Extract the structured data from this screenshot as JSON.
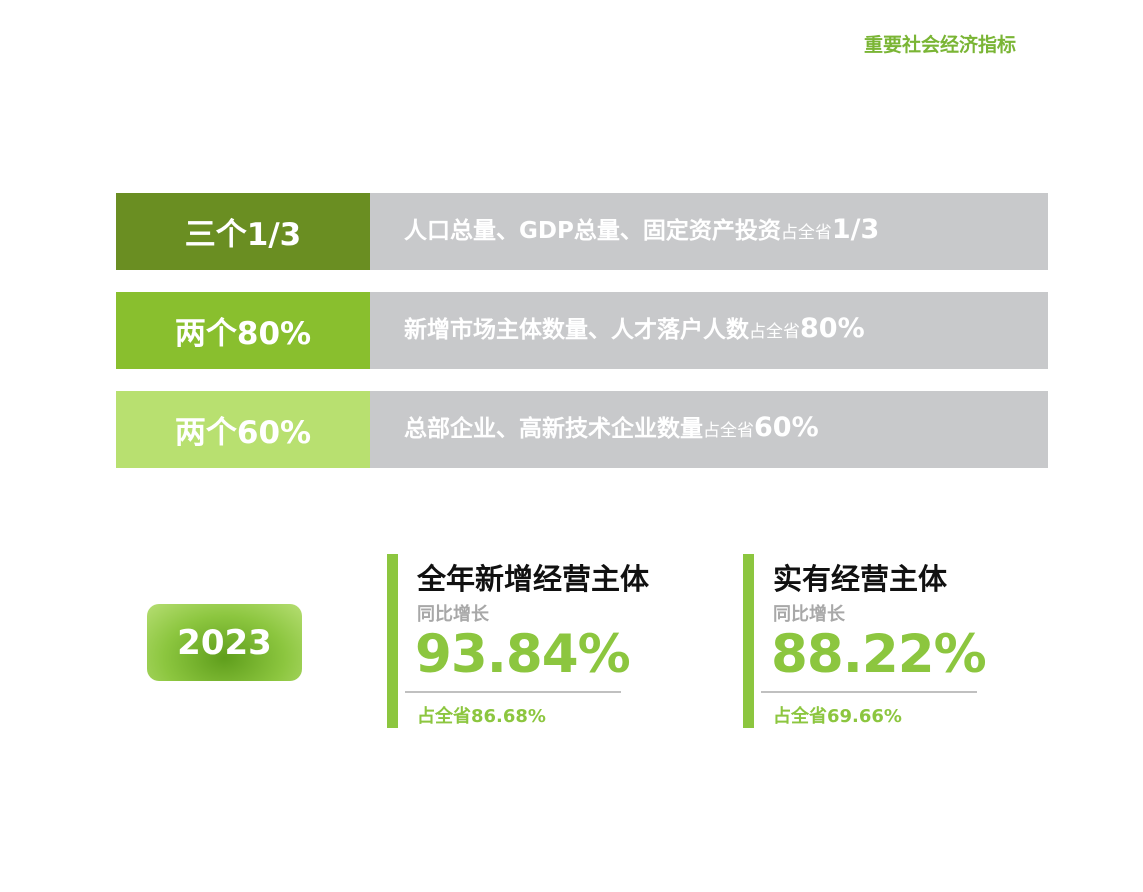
{
  "header": {
    "title": "重要社会经济指标"
  },
  "indicators": [
    {
      "label": "三个1/3",
      "color": "#6a8e22",
      "desc_main": "人口总量、GDP总量、固定资产投资",
      "desc_small": "占全省",
      "desc_value": "1/3"
    },
    {
      "label": "两个80%",
      "color": "#89bf2e",
      "desc_main": "新增市场主体数量、人才落户人数",
      "desc_small": "占全省",
      "desc_value": "80%"
    },
    {
      "label": "两个60%",
      "color": "#b8e070",
      "desc_main": "总部企业、高新技术企业数量",
      "desc_small": "占全省",
      "desc_value": "60%"
    }
  ],
  "year": "2023",
  "stats": [
    {
      "title": "全年新增经营主体",
      "subtitle": "同比增长",
      "value": "93.84%",
      "share": "占全省86.68%"
    },
    {
      "title": "实有经营主体",
      "subtitle": "同比增长",
      "value": "88.22%",
      "share": "占全省69.66%"
    }
  ],
  "colors": {
    "accent": "#8cc63f",
    "header": "#7ab535",
    "desc_bg": "#c8c9cb",
    "muted_text": "#a8a8a8"
  }
}
